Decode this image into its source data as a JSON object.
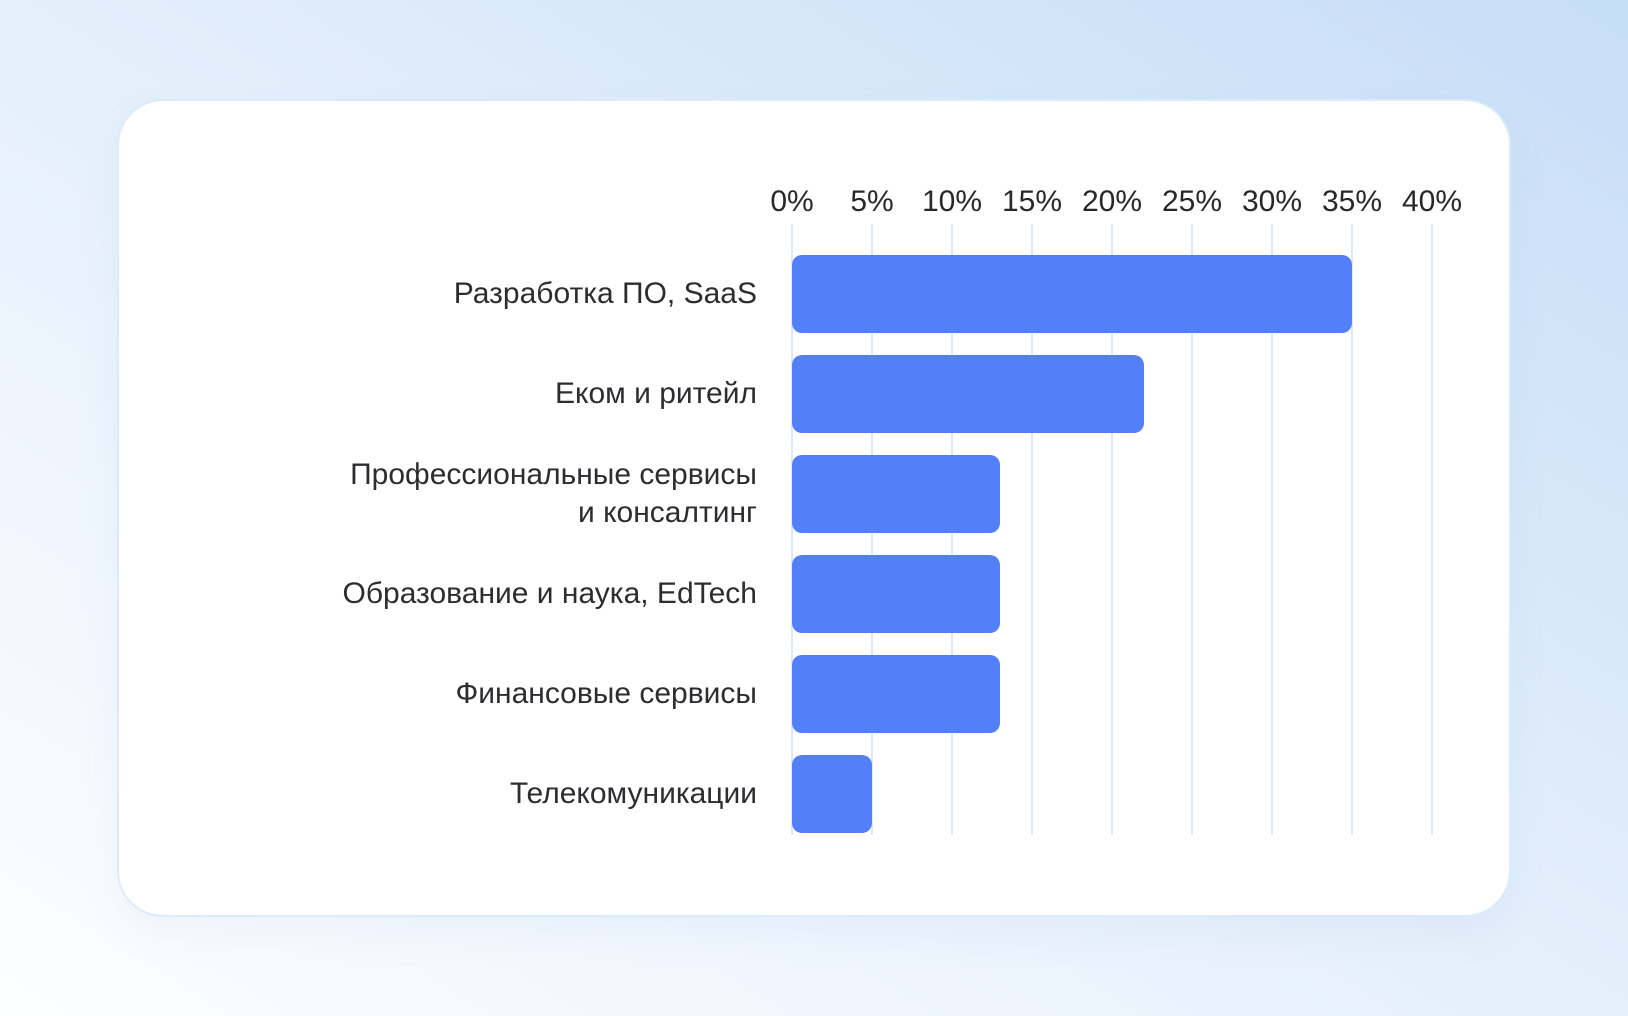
{
  "chart_data": {
    "type": "bar",
    "orientation": "horizontal",
    "title": "",
    "xlabel": "",
    "ylabel": "",
    "categories": [
      "Разработка ПО, SaaS",
      "Еком и ритейл",
      "Профессиональные сервисы\nи консалтинг",
      "Образование и наука, EdTech",
      "Финансовые сервисы",
      "Телекомуникации"
    ],
    "values": [
      35,
      22,
      13,
      13,
      13,
      5
    ],
    "unit": "%",
    "xlim": [
      0,
      40
    ],
    "x_tick_step": 5,
    "x_ticks": [
      "0%",
      "5%",
      "10%",
      "15%",
      "20%",
      "25%",
      "30%",
      "35%",
      "40%"
    ],
    "grid": true,
    "axis_position": "top",
    "legend": "none",
    "colors": {
      "bar": "#5380f8",
      "gridline": "#dbe9fa",
      "axis_text": "#26282b",
      "label_text": "#2b2d30",
      "card_background": "#ffffff",
      "card_border": "#dcebfa",
      "page_background_from": "#c6def7",
      "page_background_to": "#fdfeff"
    }
  }
}
